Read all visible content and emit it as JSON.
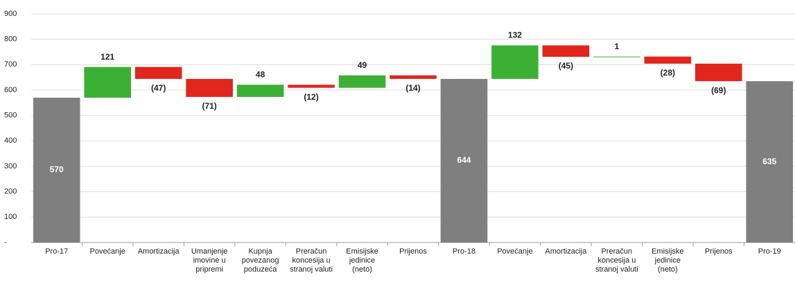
{
  "chart_data": {
    "type": "waterfall",
    "categories": [
      "Pro-17",
      "Povećanje",
      "Amortizacija",
      "Umanjenje imovine u pripremi",
      "Kupnja povezanog poduzeća",
      "Preračun koncesija u stranoj valuti",
      "Emisijske jedinice (neto)",
      "Prijenos",
      "Pro-18",
      "Povećanje",
      "Amortizacija",
      "Preračun koncesija u stranoj valuti",
      "Emisijske jedinice (neto)",
      "Prijenos",
      "Pro-19"
    ],
    "values": [
      570,
      121,
      -47,
      -71,
      48,
      -12,
      49,
      -14,
      644,
      132,
      -45,
      1,
      -28,
      -69,
      635
    ],
    "value_labels": [
      "570",
      "121",
      "(47)",
      "(71)",
      "48",
      "(12)",
      "49",
      "(14)",
      "644",
      "132",
      "(45)",
      "1",
      "(28)",
      "(69)",
      "635"
    ],
    "is_total": [
      true,
      false,
      false,
      false,
      false,
      false,
      false,
      false,
      true,
      false,
      false,
      false,
      false,
      false,
      true
    ],
    "total_color": "#7f7f7f",
    "increase_color": "#3cb034",
    "decrease_color": "#e0261d",
    "ylim": [
      0,
      900
    ],
    "yticks": [
      {
        "value": 0,
        "label": "-"
      },
      100,
      200,
      300,
      400,
      500,
      600,
      700,
      800,
      900
    ],
    "grid": true
  }
}
